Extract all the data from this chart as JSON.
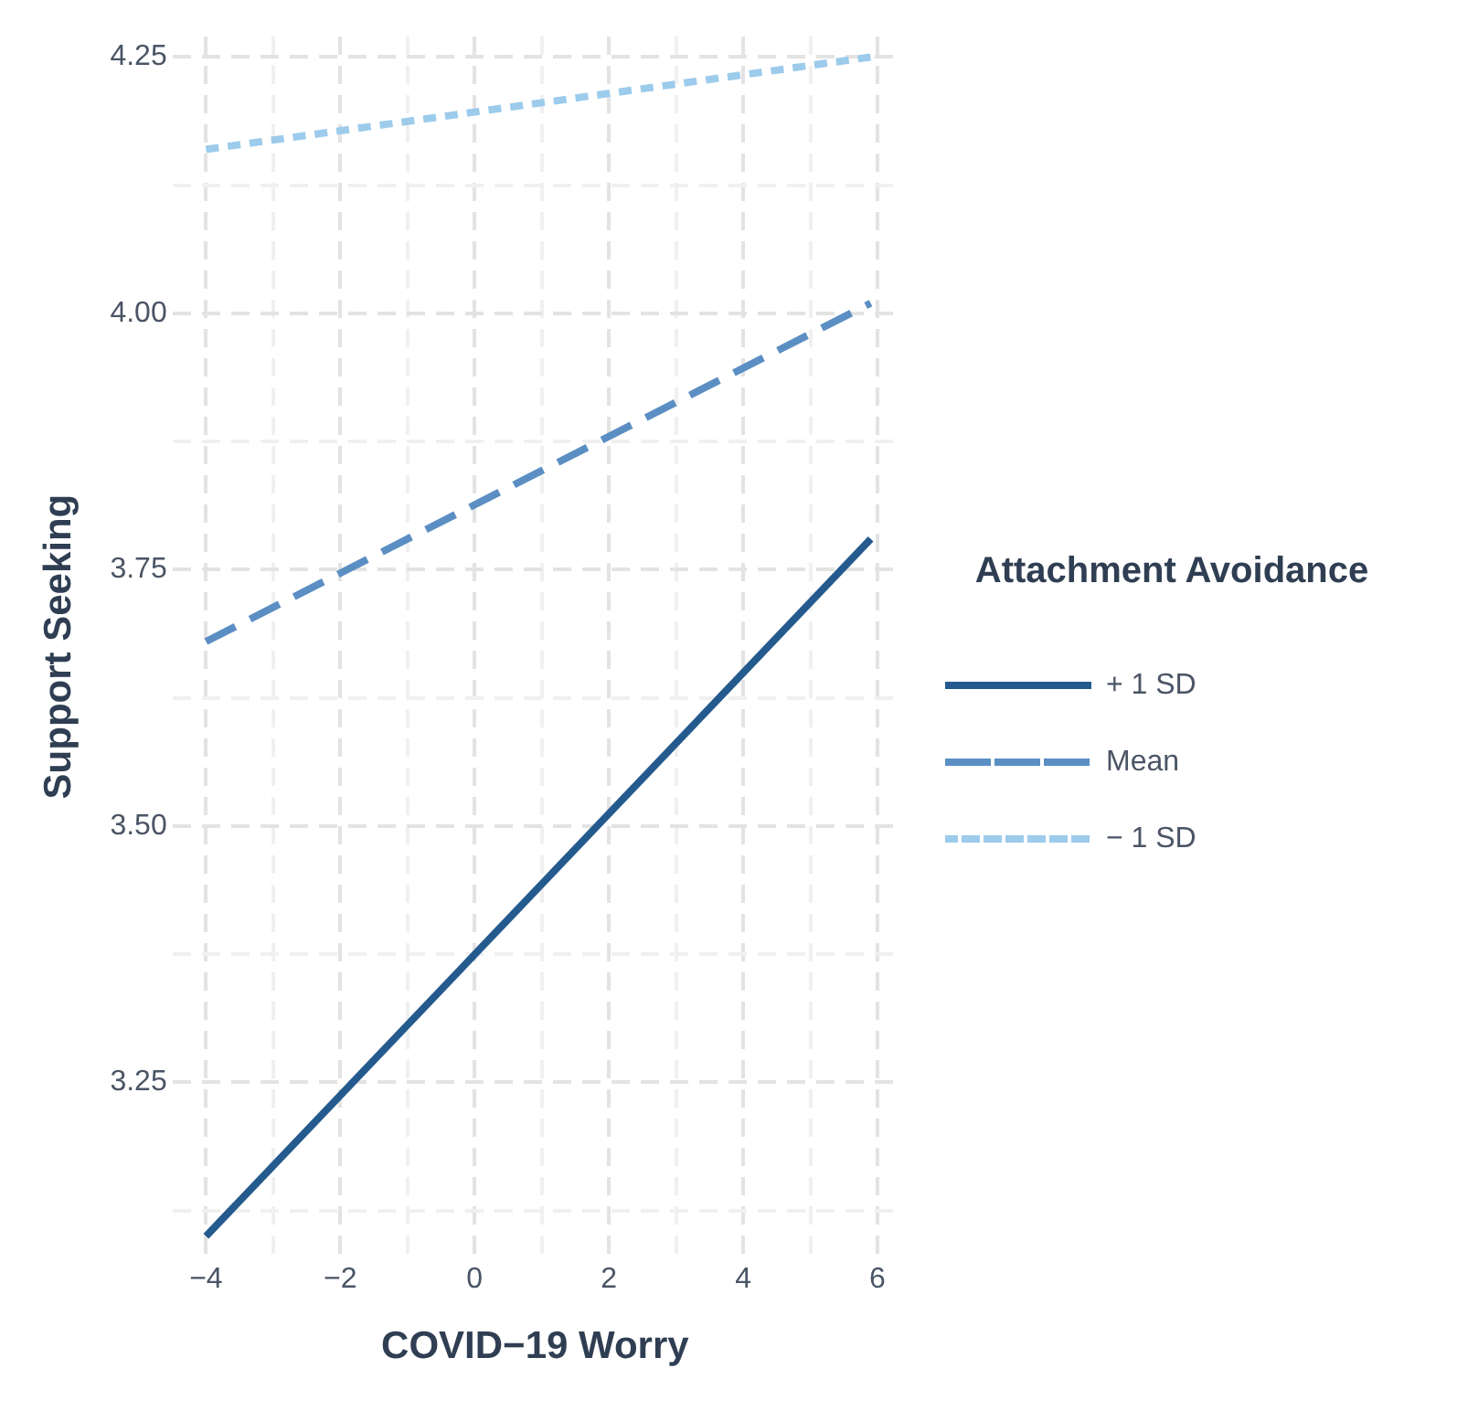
{
  "chart_data": {
    "type": "line",
    "xlabel": "COVID−19 Worry",
    "ylabel": "Support Seeking",
    "legend_title": "Attachment Avoidance",
    "x": [
      -4,
      5.9
    ],
    "series": [
      {
        "name": "+ 1 SD",
        "color": "#245a8d",
        "values": [
          3.1,
          3.78
        ],
        "line_style": "solid"
      },
      {
        "name": "Mean",
        "color": "#5b8fc4",
        "values": [
          3.68,
          4.01
        ],
        "line_style": "dashed"
      },
      {
        "name": "− 1 SD",
        "color": "#9ccbeb",
        "values": [
          4.16,
          4.25
        ],
        "line_style": "dotted"
      }
    ],
    "xlim": [
      -4.5,
      6.3
    ],
    "xticks": [
      {
        "value": -4,
        "label": "−4"
      },
      {
        "value": -3,
        "label": null
      },
      {
        "value": -2,
        "label": "−2"
      },
      {
        "value": -1,
        "label": null
      },
      0,
      {
        "value": 1,
        "label": null
      },
      2,
      {
        "value": 3,
        "label": null
      },
      4,
      {
        "value": 5,
        "label": null
      },
      6
    ],
    "ylim": [
      3.08,
      4.27
    ],
    "yticks": [
      {
        "value": 3.125,
        "label": null
      },
      {
        "value": 3.25,
        "label": "3.25"
      },
      {
        "value": 3.375,
        "label": null
      },
      {
        "value": 3.5,
        "label": "3.50"
      },
      {
        "value": 3.625,
        "label": null
      },
      {
        "value": 3.75,
        "label": "3.75"
      },
      {
        "value": 3.875,
        "label": null
      },
      {
        "value": 4,
        "label": "4.00"
      },
      {
        "value": 4.125,
        "label": null
      },
      {
        "value": 4.25,
        "label": "4.25"
      }
    ],
    "grid": true,
    "legend": "right",
    "marker": "none"
  }
}
